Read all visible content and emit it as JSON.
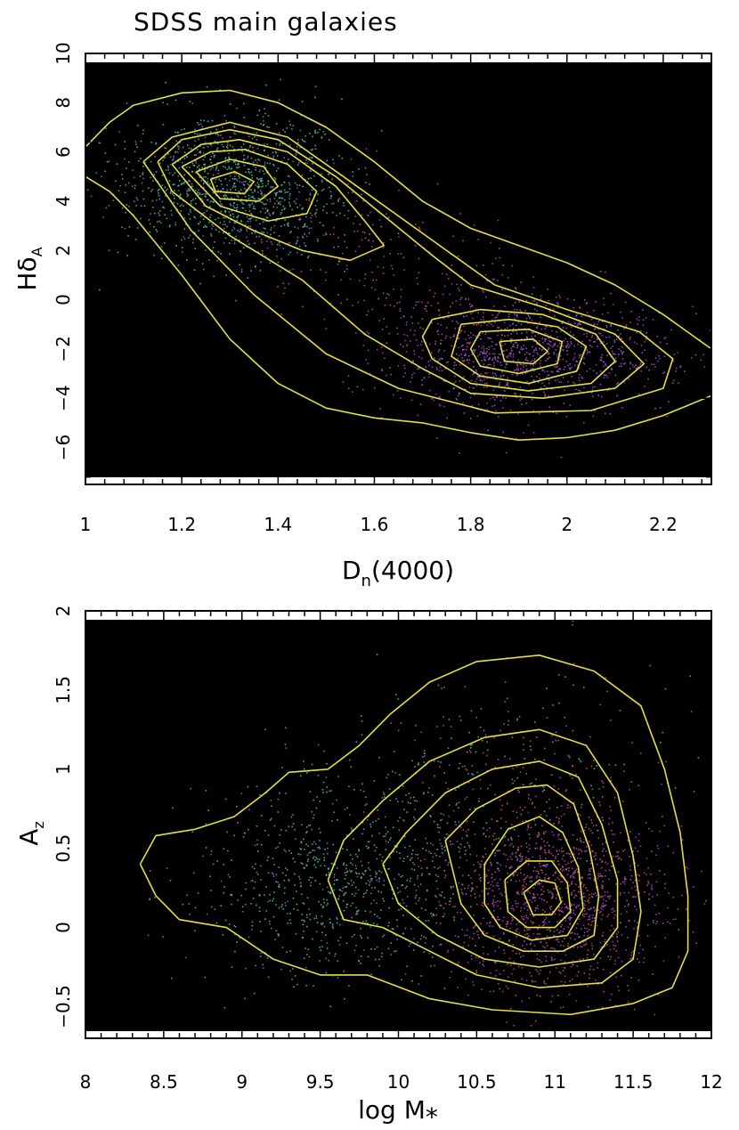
{
  "figure_title": "SDSS main galaxies",
  "colors": {
    "frame": "#000000",
    "contour": "#e6df3c",
    "young_points": "#4fd1a3",
    "old_points": "#b24fd0",
    "red_points": "#e0605c",
    "blue_points": "#7a7fe0"
  },
  "chart_data": [
    {
      "type": "scatter",
      "id": "top",
      "title": "SDSS main galaxies",
      "xlabel_main": "D",
      "xlabel_sub": "n",
      "xlabel_tail": "(4000)",
      "ylabel_main": "Hδ",
      "ylabel_sub": "A",
      "xlim": [
        1.0,
        2.3
      ],
      "ylim": [
        -7.5,
        10
      ],
      "xticks": [
        1,
        1.2,
        1.4,
        1.6,
        1.8,
        2,
        2.2
      ],
      "xtick_labels": [
        "1",
        "1.2",
        "1.4",
        "1.6",
        "1.8",
        "2",
        "2.2"
      ],
      "yticks": [
        -6,
        -4,
        -2,
        0,
        2,
        4,
        6,
        8,
        10
      ],
      "ytick_labels": [
        "−6",
        "−4",
        "−2",
        "0",
        "2",
        "4",
        "6",
        "8",
        "10"
      ],
      "density_peaks": [
        {
          "x": 1.3,
          "y": 4.6,
          "population": "young"
        },
        {
          "x": 1.92,
          "y": -2.2,
          "population": "old"
        }
      ],
      "contours": [
        {
          "level": 1,
          "points": [
            [
              1.0,
              6.2
            ],
            [
              1.05,
              7.2
            ],
            [
              1.1,
              7.9
            ],
            [
              1.2,
              8.4
            ],
            [
              1.3,
              8.5
            ],
            [
              1.4,
              8.0
            ],
            [
              1.5,
              7.0
            ],
            [
              1.6,
              5.6
            ],
            [
              1.7,
              4.0
            ],
            [
              1.8,
              2.9
            ],
            [
              1.9,
              2.2
            ],
            [
              2.0,
              1.5
            ],
            [
              2.1,
              0.6
            ],
            [
              2.2,
              -0.6
            ],
            [
              2.3,
              -2.0
            ]
          ]
        },
        {
          "level": 1,
          "points": [
            [
              1.0,
              5.0
            ],
            [
              1.05,
              4.4
            ],
            [
              1.1,
              3.4
            ],
            [
              1.2,
              1.0
            ],
            [
              1.3,
              -1.6
            ],
            [
              1.4,
              -3.4
            ],
            [
              1.5,
              -4.4
            ],
            [
              1.6,
              -4.8
            ],
            [
              1.7,
              -5.0
            ],
            [
              1.8,
              -5.4
            ],
            [
              1.9,
              -5.7
            ],
            [
              2.0,
              -5.6
            ],
            [
              2.1,
              -5.3
            ],
            [
              2.2,
              -4.7
            ],
            [
              2.3,
              -3.9
            ]
          ]
        },
        {
          "level": 2,
          "points": [
            [
              1.12,
              5.6
            ],
            [
              1.18,
              6.6
            ],
            [
              1.3,
              7.2
            ],
            [
              1.42,
              6.6
            ],
            [
              1.55,
              4.8
            ],
            [
              1.7,
              2.7
            ],
            [
              1.85,
              0.6
            ],
            [
              2.0,
              -0.4
            ],
            [
              2.15,
              -1.3
            ],
            [
              2.22,
              -2.4
            ],
            [
              2.2,
              -3.6
            ],
            [
              2.05,
              -4.5
            ],
            [
              1.85,
              -4.6
            ],
            [
              1.65,
              -3.6
            ],
            [
              1.5,
              -2.2
            ],
            [
              1.35,
              0.2
            ],
            [
              1.22,
              2.8
            ],
            [
              1.12,
              5.6
            ]
          ]
        },
        {
          "level": 3,
          "points": [
            [
              1.15,
              5.6
            ],
            [
              1.2,
              6.5
            ],
            [
              1.3,
              6.9
            ],
            [
              1.4,
              6.5
            ],
            [
              1.52,
              5.0
            ],
            [
              1.62,
              3.4
            ],
            [
              1.72,
              1.8
            ],
            [
              1.8,
              0.6
            ],
            [
              1.95,
              -0.3
            ],
            [
              2.1,
              -1.4
            ],
            [
              2.16,
              -2.6
            ],
            [
              2.1,
              -3.6
            ],
            [
              1.95,
              -4.0
            ],
            [
              1.8,
              -3.8
            ],
            [
              1.7,
              -2.8
            ],
            [
              1.58,
              -1.4
            ],
            [
              1.45,
              0.8
            ],
            [
              1.3,
              2.6
            ],
            [
              1.18,
              4.4
            ],
            [
              1.15,
              5.6
            ]
          ]
        },
        {
          "level": 4,
          "points": [
            [
              1.18,
              5.5
            ],
            [
              1.24,
              6.3
            ],
            [
              1.32,
              6.5
            ],
            [
              1.42,
              6.0
            ],
            [
              1.52,
              4.6
            ],
            [
              1.58,
              3.2
            ],
            [
              1.62,
              2.2
            ],
            [
              1.55,
              1.6
            ],
            [
              1.45,
              2.0
            ],
            [
              1.35,
              2.8
            ],
            [
              1.25,
              3.8
            ],
            [
              1.18,
              5.5
            ]
          ]
        },
        {
          "level": 4,
          "points": [
            [
              1.72,
              -0.8
            ],
            [
              1.82,
              -0.4
            ],
            [
              1.95,
              -0.6
            ],
            [
              2.06,
              -1.4
            ],
            [
              2.1,
              -2.5
            ],
            [
              2.05,
              -3.4
            ],
            [
              1.92,
              -3.7
            ],
            [
              1.8,
              -3.4
            ],
            [
              1.72,
              -2.4
            ],
            [
              1.7,
              -1.5
            ],
            [
              1.72,
              -0.8
            ]
          ]
        },
        {
          "level": 5,
          "points": [
            [
              1.2,
              5.4
            ],
            [
              1.26,
              6.0
            ],
            [
              1.33,
              6.1
            ],
            [
              1.42,
              5.5
            ],
            [
              1.48,
              4.4
            ],
            [
              1.46,
              3.5
            ],
            [
              1.38,
              3.2
            ],
            [
              1.28,
              3.8
            ],
            [
              1.2,
              5.4
            ]
          ]
        },
        {
          "level": 5,
          "points": [
            [
              1.78,
              -1.0
            ],
            [
              1.88,
              -0.8
            ],
            [
              1.98,
              -1.1
            ],
            [
              2.04,
              -1.9
            ],
            [
              2.02,
              -2.9
            ],
            [
              1.92,
              -3.4
            ],
            [
              1.82,
              -3.1
            ],
            [
              1.76,
              -2.3
            ],
            [
              1.78,
              -1.0
            ]
          ]
        },
        {
          "level": 6,
          "points": [
            [
              1.23,
              5.2
            ],
            [
              1.3,
              5.7
            ],
            [
              1.37,
              5.4
            ],
            [
              1.4,
              4.6
            ],
            [
              1.36,
              4.0
            ],
            [
              1.28,
              4.1
            ],
            [
              1.23,
              5.2
            ]
          ]
        },
        {
          "level": 6,
          "points": [
            [
              1.82,
              -1.3
            ],
            [
              1.92,
              -1.2
            ],
            [
              1.99,
              -1.7
            ],
            [
              1.98,
              -2.6
            ],
            [
              1.9,
              -3.0
            ],
            [
              1.82,
              -2.7
            ],
            [
              1.8,
              -2.0
            ],
            [
              1.82,
              -1.3
            ]
          ]
        },
        {
          "level": 7,
          "points": [
            [
              1.26,
              4.9
            ],
            [
              1.31,
              5.2
            ],
            [
              1.35,
              4.8
            ],
            [
              1.33,
              4.3
            ],
            [
              1.27,
              4.4
            ],
            [
              1.26,
              4.9
            ]
          ]
        },
        {
          "level": 7,
          "points": [
            [
              1.86,
              -1.7
            ],
            [
              1.93,
              -1.6
            ],
            [
              1.96,
              -2.1
            ],
            [
              1.93,
              -2.6
            ],
            [
              1.87,
              -2.5
            ],
            [
              1.86,
              -1.7
            ]
          ]
        }
      ]
    },
    {
      "type": "scatter",
      "id": "bottom",
      "xlabel_main": "log M",
      "xlabel_sub": "*",
      "ylabel_main": "A",
      "ylabel_sub": "z",
      "xlim": [
        8,
        12
      ],
      "ylim": [
        -0.7,
        2
      ],
      "xticks": [
        8,
        8.5,
        9,
        9.5,
        10,
        10.5,
        11,
        11.5,
        12
      ],
      "xtick_labels": [
        "8",
        "8.5",
        "9",
        "9.5",
        "10",
        "10.5",
        "11",
        "11.5",
        "12"
      ],
      "yticks": [
        -0.5,
        0,
        0.5,
        1,
        1.5,
        2
      ],
      "ytick_labels": [
        "−0.5",
        "0",
        "0.5",
        "1",
        "1.5",
        "2"
      ],
      "density_peaks": [
        {
          "x": 11.0,
          "y": 0.18,
          "population": "massive"
        },
        {
          "x": 9.6,
          "y": 0.3,
          "population": "low-mass"
        }
      ],
      "contours": [
        {
          "level": 1,
          "points": [
            [
              8.35,
              0.4
            ],
            [
              8.45,
              0.58
            ],
            [
              8.7,
              0.62
            ],
            [
              8.95,
              0.7
            ],
            [
              9.15,
              0.85
            ],
            [
              9.3,
              0.98
            ],
            [
              9.55,
              1.0
            ],
            [
              9.75,
              1.15
            ],
            [
              9.95,
              1.35
            ],
            [
              10.2,
              1.55
            ],
            [
              10.5,
              1.68
            ],
            [
              10.9,
              1.72
            ],
            [
              11.25,
              1.62
            ],
            [
              11.55,
              1.4
            ],
            [
              11.7,
              1.0
            ],
            [
              11.8,
              0.6
            ],
            [
              11.85,
              0.2
            ],
            [
              11.85,
              -0.15
            ],
            [
              11.75,
              -0.38
            ],
            [
              11.5,
              -0.48
            ],
            [
              11.1,
              -0.55
            ],
            [
              10.6,
              -0.52
            ],
            [
              10.2,
              -0.45
            ],
            [
              9.8,
              -0.3
            ],
            [
              9.5,
              -0.3
            ],
            [
              9.2,
              -0.2
            ],
            [
              8.9,
              0.0
            ],
            [
              8.6,
              0.05
            ],
            [
              8.45,
              0.2
            ],
            [
              8.35,
              0.4
            ]
          ]
        },
        {
          "level": 2,
          "points": [
            [
              9.55,
              0.3
            ],
            [
              9.65,
              0.55
            ],
            [
              9.9,
              0.8
            ],
            [
              10.2,
              1.05
            ],
            [
              10.55,
              1.2
            ],
            [
              10.9,
              1.25
            ],
            [
              11.2,
              1.15
            ],
            [
              11.4,
              0.85
            ],
            [
              11.5,
              0.45
            ],
            [
              11.55,
              0.1
            ],
            [
              11.5,
              -0.2
            ],
            [
              11.3,
              -0.35
            ],
            [
              10.9,
              -0.38
            ],
            [
              10.5,
              -0.3
            ],
            [
              10.2,
              -0.15
            ],
            [
              9.9,
              0.0
            ],
            [
              9.65,
              0.05
            ],
            [
              9.55,
              0.3
            ]
          ]
        },
        {
          "level": 3,
          "points": [
            [
              9.9,
              0.4
            ],
            [
              10.05,
              0.6
            ],
            [
              10.3,
              0.85
            ],
            [
              10.6,
              1.0
            ],
            [
              10.9,
              1.05
            ],
            [
              11.15,
              0.95
            ],
            [
              11.3,
              0.65
            ],
            [
              11.4,
              0.3
            ],
            [
              11.4,
              0.0
            ],
            [
              11.25,
              -0.2
            ],
            [
              10.9,
              -0.25
            ],
            [
              10.55,
              -0.2
            ],
            [
              10.25,
              -0.05
            ],
            [
              10.0,
              0.15
            ],
            [
              9.9,
              0.4
            ]
          ]
        },
        {
          "level": 4,
          "points": [
            [
              10.3,
              0.55
            ],
            [
              10.5,
              0.75
            ],
            [
              10.75,
              0.88
            ],
            [
              10.95,
              0.9
            ],
            [
              11.12,
              0.78
            ],
            [
              11.22,
              0.5
            ],
            [
              11.28,
              0.2
            ],
            [
              11.25,
              -0.05
            ],
            [
              11.05,
              -0.15
            ],
            [
              10.8,
              -0.15
            ],
            [
              10.55,
              -0.05
            ],
            [
              10.4,
              0.15
            ],
            [
              10.3,
              0.55
            ]
          ]
        },
        {
          "level": 5,
          "points": [
            [
              10.55,
              0.4
            ],
            [
              10.7,
              0.62
            ],
            [
              10.9,
              0.7
            ],
            [
              11.05,
              0.6
            ],
            [
              11.15,
              0.38
            ],
            [
              11.18,
              0.12
            ],
            [
              11.08,
              -0.05
            ],
            [
              10.85,
              -0.08
            ],
            [
              10.65,
              0.0
            ],
            [
              10.55,
              0.15
            ],
            [
              10.55,
              0.4
            ]
          ]
        },
        {
          "level": 6,
          "points": [
            [
              10.68,
              0.3
            ],
            [
              10.82,
              0.42
            ],
            [
              10.98,
              0.42
            ],
            [
              11.08,
              0.28
            ],
            [
              11.1,
              0.1
            ],
            [
              11.0,
              0.0
            ],
            [
              10.82,
              0.0
            ],
            [
              10.7,
              0.1
            ],
            [
              10.68,
              0.3
            ]
          ]
        },
        {
          "level": 7,
          "points": [
            [
              10.8,
              0.22
            ],
            [
              10.9,
              0.3
            ],
            [
              11.0,
              0.28
            ],
            [
              11.04,
              0.16
            ],
            [
              10.98,
              0.08
            ],
            [
              10.86,
              0.08
            ],
            [
              10.8,
              0.22
            ]
          ]
        }
      ]
    }
  ]
}
